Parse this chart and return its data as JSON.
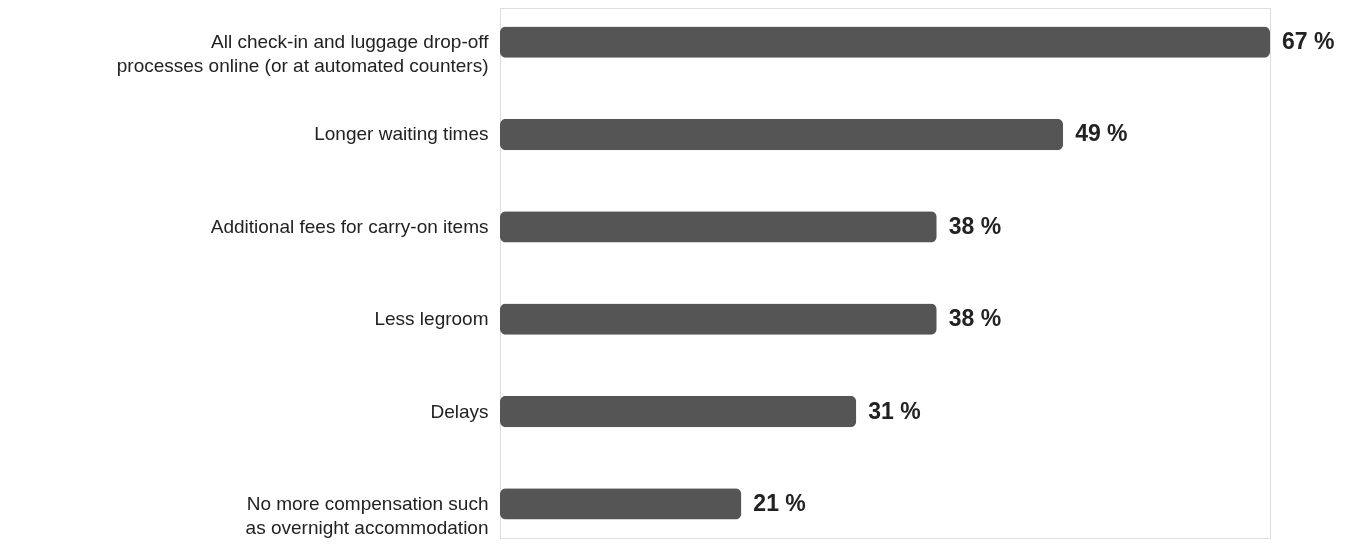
{
  "chart_data": {
    "type": "bar",
    "orientation": "horizontal",
    "categories": [
      "All check-in and luggage drop-off\nprocesses online (or at automated counters)",
      "Longer waiting times",
      "Additional fees for carry-on items",
      "Less legroom",
      "Delays",
      "No more compensation such\nas overnight accommodation"
    ],
    "values": [
      67,
      49,
      38,
      38,
      31,
      21
    ],
    "value_labels": [
      "67 %",
      "49 %",
      "38 %",
      "38 %",
      "31 %",
      "21 %"
    ],
    "color": "#555555"
  }
}
